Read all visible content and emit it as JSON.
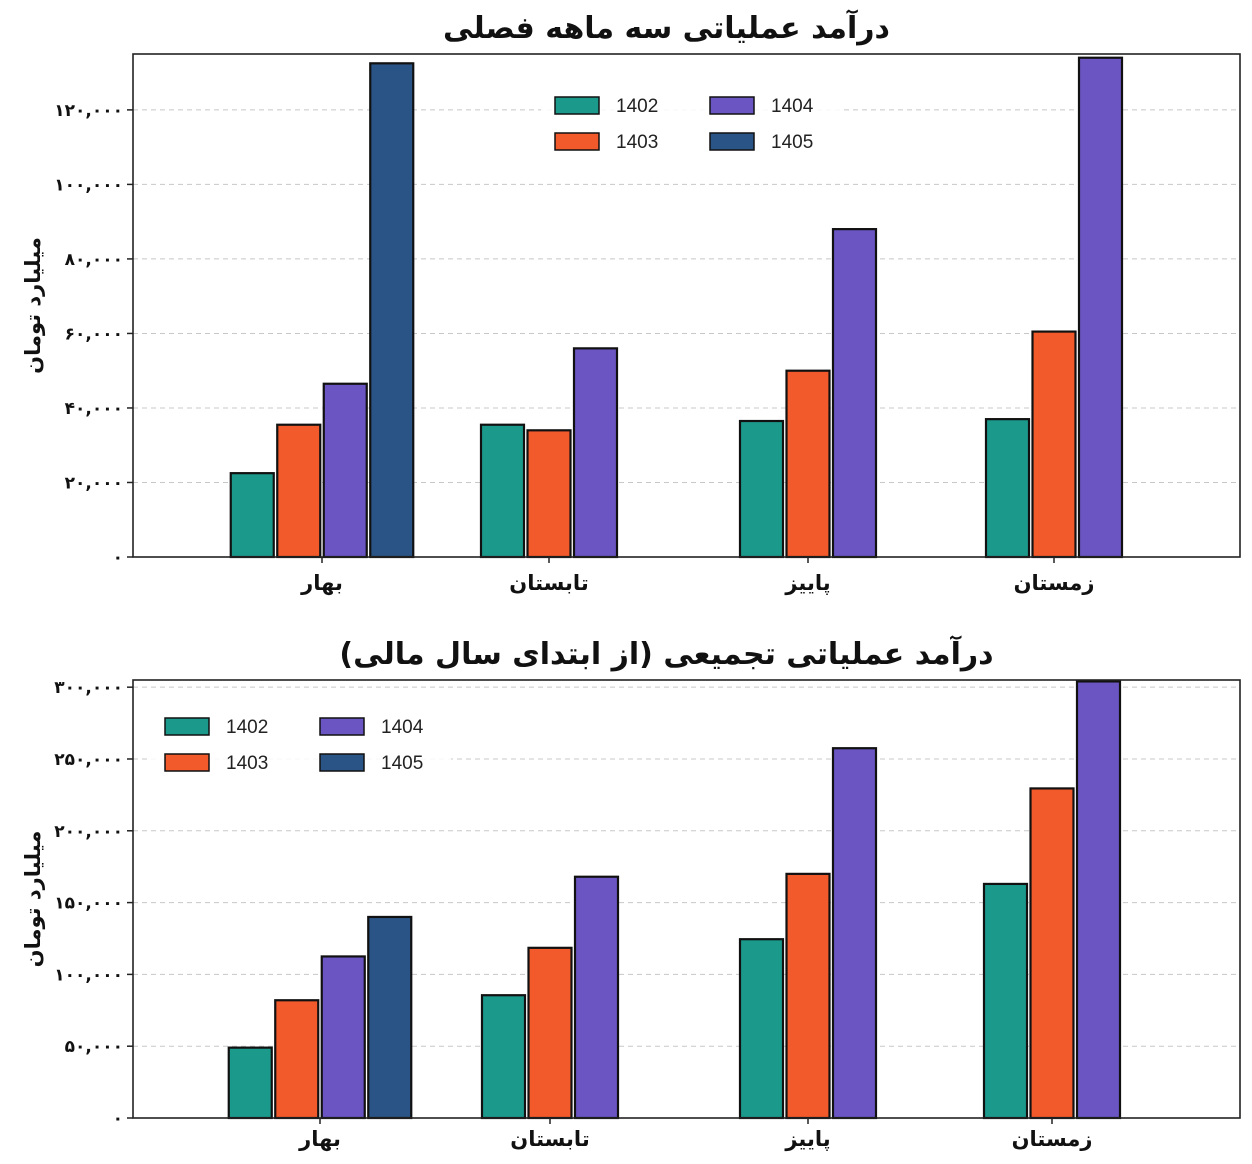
{
  "colors": {
    "1402": "#1b9a8c",
    "1403": "#f2592b",
    "1404": "#6a55c2",
    "1405": "#2a5485"
  },
  "chart_data": [
    {
      "type": "bar",
      "title": "درآمد عملیاتی سه ماهه  فصلی",
      "ylabel": "میلیارد تومان",
      "ylim": [
        0,
        135000
      ],
      "yticks": [
        0,
        20000,
        40000,
        60000,
        80000,
        100000,
        120000
      ],
      "ytick_labels": [
        "۰",
        "۲۰,۰۰۰",
        "۴۰,۰۰۰",
        "۶۰,۰۰۰",
        "۸۰,۰۰۰",
        "۱۰۰,۰۰۰",
        "۱۲۰,۰۰۰"
      ],
      "grid": true,
      "legend_position": "top-center",
      "categories": [
        "بهار",
        "تابستان",
        "پاییز",
        "زمستان"
      ],
      "series": [
        {
          "name": "1402",
          "values": [
            22500,
            35500,
            36500,
            37000
          ]
        },
        {
          "name": "1403",
          "values": [
            35500,
            34000,
            50000,
            60500
          ]
        },
        {
          "name": "1404",
          "values": [
            46500,
            56000,
            88000,
            134000
          ]
        },
        {
          "name": "1405",
          "values": [
            132500,
            null,
            null,
            null
          ]
        }
      ]
    },
    {
      "type": "bar",
      "title": "درآمد عملیاتی تجمیعی (از ابتدای سال مالی)",
      "ylabel": "میلیارد تومان",
      "ylim": [
        0,
        305000
      ],
      "yticks": [
        0,
        50000,
        100000,
        150000,
        200000,
        250000,
        300000
      ],
      "ytick_labels": [
        "۰",
        "۵۰,۰۰۰",
        "۱۰۰,۰۰۰",
        "۱۵۰,۰۰۰",
        "۲۰۰,۰۰۰",
        "۲۵۰,۰۰۰",
        "۳۰۰,۰۰۰"
      ],
      "grid": true,
      "legend_position": "top-left",
      "categories": [
        "بهار",
        "تابستان",
        "پاییز",
        "زمستان"
      ],
      "series": [
        {
          "name": "1402",
          "values": [
            49000,
            85500,
            124500,
            163000
          ]
        },
        {
          "name": "1403",
          "values": [
            82000,
            118500,
            170000,
            229500
          ]
        },
        {
          "name": "1404",
          "values": [
            112500,
            168000,
            257500,
            304000
          ]
        },
        {
          "name": "1405",
          "values": [
            140000,
            null,
            null,
            null
          ]
        }
      ]
    }
  ]
}
